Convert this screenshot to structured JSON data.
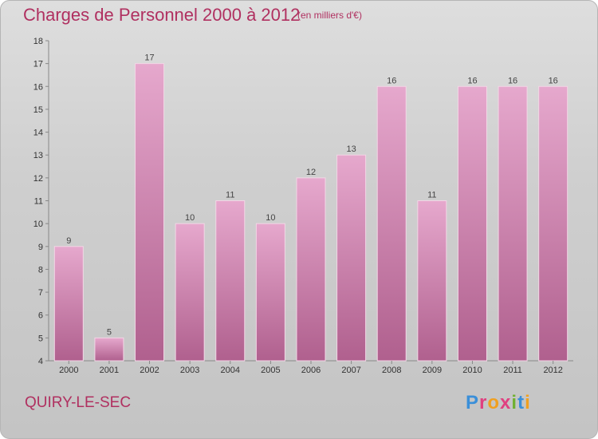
{
  "title": "Charges de Personnel 2000 à 2012",
  "subtitle": "(en milliers d'€)",
  "town": "QUIRY-LE-SEC",
  "logo_text": "Proxiti",
  "colors": {
    "title": "#b03060",
    "bar": "#c97aa6",
    "bar_light": "#e6a8cd",
    "bar_dark": "#b0608e"
  },
  "chart_data": {
    "type": "bar",
    "categories": [
      "2000",
      "2001",
      "2002",
      "2003",
      "2004",
      "2005",
      "2006",
      "2007",
      "2008",
      "2009",
      "2010",
      "2011",
      "2012"
    ],
    "values": [
      9,
      5,
      17,
      10,
      11,
      10,
      12,
      13,
      16,
      11,
      16,
      16,
      16
    ],
    "ylim": [
      4,
      18
    ],
    "yticks": [
      4,
      5,
      6,
      7,
      8,
      9,
      10,
      11,
      12,
      13,
      14,
      15,
      16,
      17,
      18
    ],
    "grid": false,
    "data_labels": true
  }
}
